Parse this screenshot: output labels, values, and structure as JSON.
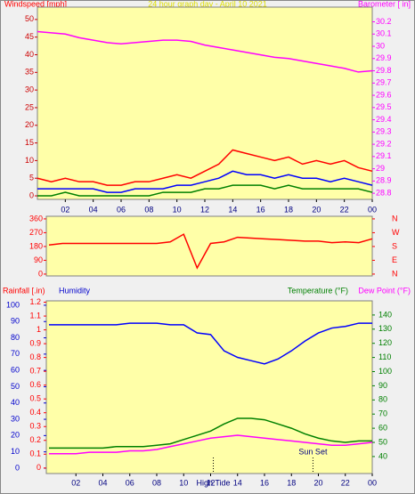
{
  "chart_data": [
    {
      "type": "line",
      "title": "24 hour graph day - April 10 2021",
      "y_label": "Windspeed [mph]",
      "y2_label": "Barometer [ in]",
      "x": [
        0,
        1,
        2,
        3,
        4,
        5,
        6,
        7,
        8,
        9,
        10,
        11,
        12,
        13,
        14,
        15,
        16,
        17,
        18,
        19,
        20,
        21,
        22,
        23,
        24
      ],
      "xlim": [
        0,
        24
      ],
      "xticks": [
        {
          "value": 2,
          "label": "02"
        },
        {
          "value": 4,
          "label": "04"
        },
        {
          "value": 6,
          "label": "06"
        },
        {
          "value": 8,
          "label": "08"
        },
        10,
        12,
        14,
        16,
        18,
        20,
        22,
        {
          "value": 24,
          "label": "00"
        }
      ],
      "ylim": [
        -1,
        53.5
      ],
      "yticks": [
        0,
        5,
        10,
        15,
        20,
        25,
        30,
        35,
        40,
        45,
        50
      ],
      "y2lim": [
        28.75,
        30.32
      ],
      "y2ticks": [
        28.8,
        28.9,
        29,
        29.1,
        29.2,
        29.3,
        29.4,
        29.5,
        29.6,
        29.7,
        29.8,
        29.9,
        30,
        30.1,
        30.2
      ],
      "series": [
        {
          "color": "#ff0000",
          "values": [
            5,
            4,
            5,
            4,
            4,
            3,
            3,
            4,
            4,
            5,
            6,
            5,
            7,
            9,
            13,
            12,
            11,
            10,
            11,
            9,
            10,
            9,
            10,
            8,
            7
          ]
        },
        {
          "color": "#0000ff",
          "values": [
            2,
            2,
            2,
            2,
            2,
            1,
            1,
            2,
            2,
            2,
            3,
            3,
            4,
            5,
            7,
            6,
            6,
            5,
            6,
            5,
            5,
            4,
            5,
            4,
            3
          ]
        },
        {
          "color": "#008000",
          "values": [
            0,
            0,
            1,
            0,
            0,
            0,
            0,
            0,
            0,
            1,
            1,
            1,
            2,
            2,
            3,
            3,
            3,
            2,
            3,
            2,
            2,
            2,
            2,
            2,
            1
          ]
        },
        {
          "color": "#ff00ff",
          "axis": "y2",
          "values": [
            30.12,
            30.11,
            30.1,
            30.07,
            30.05,
            30.03,
            30.02,
            30.03,
            30.04,
            30.05,
            30.05,
            30.04,
            30.01,
            29.99,
            29.97,
            29.95,
            29.93,
            29.91,
            29.9,
            29.88,
            29.86,
            29.84,
            29.82,
            29.79,
            29.8
          ]
        }
      ]
    },
    {
      "type": "line",
      "x": [
        0,
        1,
        2,
        3,
        4,
        5,
        6,
        7,
        8,
        9,
        10,
        11,
        12,
        13,
        14,
        15,
        16,
        17,
        18,
        19,
        20,
        21,
        22,
        23,
        24
      ],
      "xlim": [
        0,
        24
      ],
      "ylim": [
        -12,
        377
      ],
      "yticks": [
        0,
        90,
        180,
        270,
        360
      ],
      "y2lim": [
        -12,
        377
      ],
      "y2ticks": [
        {
          "value": 360,
          "label": "N"
        },
        {
          "value": 270,
          "label": "W"
        },
        {
          "value": 180,
          "label": "S"
        },
        {
          "value": 90,
          "label": "E"
        },
        {
          "value": 0,
          "label": "N"
        }
      ],
      "series": [
        {
          "color": "#ff0000",
          "values": [
            190,
            200,
            200,
            200,
            200,
            200,
            200,
            200,
            200,
            210,
            260,
            40,
            200,
            210,
            240,
            235,
            230,
            225,
            220,
            215,
            215,
            205,
            210,
            205,
            230
          ]
        }
      ]
    },
    {
      "type": "line",
      "y3_label": "Rainfall [.in)",
      "y_label": "Humidity",
      "y2_label": "Temperature (°F)",
      "y2b_label": "Dew Point (°F)",
      "x": [
        0,
        1,
        2,
        3,
        4,
        5,
        6,
        7,
        8,
        9,
        10,
        11,
        12,
        13,
        14,
        15,
        16,
        17,
        18,
        19,
        20,
        21,
        22,
        23,
        24
      ],
      "xlim": [
        0,
        24
      ],
      "xticks": [
        {
          "value": 2,
          "label": "02"
        },
        {
          "value": 4,
          "label": "04"
        },
        {
          "value": 6,
          "label": "06"
        },
        {
          "value": 8,
          "label": "08"
        },
        10,
        12,
        14,
        16,
        18,
        20,
        22,
        {
          "value": 24,
          "label": "00"
        }
      ],
      "ylim": [
        -3.3,
        102.7
      ],
      "yticks": [
        0,
        10,
        20,
        30,
        40,
        50,
        60,
        70,
        80,
        90,
        100
      ],
      "y3lim": [
        -0.04,
        1.21
      ],
      "y3ticks": [
        0,
        0.1,
        0.2,
        0.3,
        0.4,
        0.5,
        0.6,
        0.7,
        0.8,
        0.9,
        1,
        1.1,
        1.2
      ],
      "y2lim": [
        28,
        150
      ],
      "y2ticks": [
        40,
        50,
        60,
        70,
        80,
        90,
        100,
        110,
        120,
        130,
        140
      ],
      "series": [
        {
          "color": "#0000ff",
          "values": [
            88,
            88,
            88,
            88,
            88,
            88,
            89,
            89,
            89,
            88,
            88,
            83,
            82,
            72,
            68,
            66,
            64,
            67,
            72,
            78,
            83,
            86,
            87,
            89,
            89
          ]
        },
        {
          "color": "#008000",
          "axis": "y2",
          "values": [
            46,
            46,
            46,
            46,
            46,
            47,
            47,
            47,
            48,
            49,
            52,
            55,
            58,
            63,
            67,
            67,
            66,
            63,
            60,
            56,
            53,
            51,
            50,
            51,
            51
          ]
        },
        {
          "color": "#ff00ff",
          "axis": "y2",
          "values": [
            42,
            42,
            42,
            43,
            43,
            43,
            44,
            44,
            45,
            47,
            49,
            51,
            53,
            54,
            55,
            54,
            53,
            52,
            51,
            50,
            49,
            48,
            48,
            49,
            50
          ]
        }
      ],
      "annotations": [
        {
          "text": "High Tide",
          "x": 12.2
        },
        {
          "text": "Sun Set",
          "x": 19.6
        }
      ]
    }
  ]
}
